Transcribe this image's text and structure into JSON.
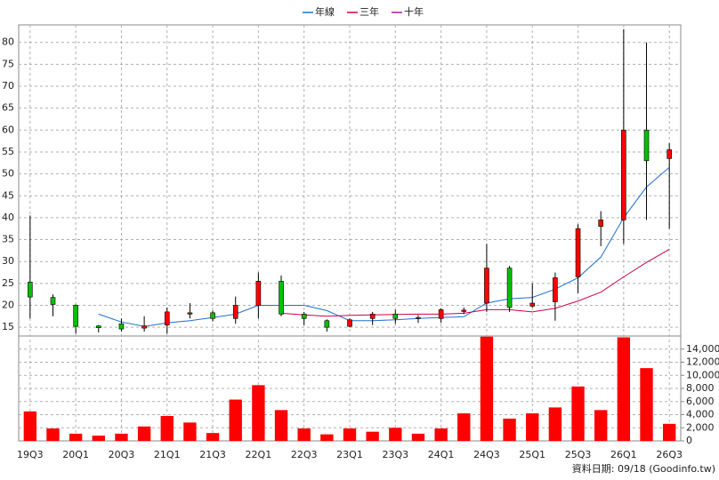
{
  "chart_data": {
    "type": "candlestick",
    "categories": [
      "19Q3",
      null,
      "20Q1",
      null,
      "20Q3",
      null,
      "21Q1",
      null,
      "21Q3",
      null,
      "22Q1",
      null,
      "22Q3",
      null,
      "23Q1",
      null,
      "23Q3",
      null,
      "24Q1",
      null,
      "24Q3",
      null,
      "25Q1",
      null,
      "25Q3",
      null,
      "26Q1",
      null,
      "26Q3"
    ],
    "open": [
      25.3,
      21.8,
      20,
      15.3,
      15.8,
      14.8,
      15.5,
      18,
      18.3,
      17,
      20,
      25.5,
      18,
      16.5,
      15.2,
      17,
      18,
      17,
      17,
      18.6,
      20.5,
      28.5,
      19.8,
      20.8,
      26.5,
      38,
      39.5,
      60,
      53.5
    ],
    "close": [
      21.9,
      20.2,
      15.2,
      14.9,
      14.6,
      15.3,
      18.5,
      18.3,
      17,
      20,
      25.5,
      18,
      17,
      15,
      16.7,
      18,
      17,
      17.2,
      19,
      18.9,
      28.5,
      19.5,
      20.5,
      26.3,
      37.5,
      39.5,
      60,
      53,
      55.5
    ],
    "high": [
      40.5,
      22.5,
      20.2,
      15.5,
      17,
      17.5,
      19.5,
      20.5,
      18.8,
      22,
      27.5,
      26.8,
      18.5,
      16.8,
      17,
      18.5,
      19,
      17.8,
      19.3,
      19.5,
      34,
      29,
      25,
      27.5,
      38.5,
      41.5,
      83,
      80,
      57
    ],
    "low": [
      17,
      17.5,
      13.5,
      13.8,
      14,
      14,
      13.5,
      17,
      16.3,
      15.8,
      17,
      17.5,
      15.5,
      14,
      15,
      15.5,
      15.8,
      16,
      16,
      18,
      18.5,
      18.5,
      19.5,
      16.5,
      22.8,
      33.5,
      34,
      39.5,
      37.5
    ],
    "up_color": "#ff0000",
    "down_color": "#00c000",
    "ylim": [
      13,
      84
    ],
    "yticks": [
      15,
      20,
      25,
      30,
      35,
      40,
      45,
      50,
      55,
      60,
      65,
      70,
      75,
      80
    ],
    "grid": true,
    "legend": "top",
    "series": [
      {
        "name": "年線",
        "color": "#1f6fd0",
        "values": [
          null,
          null,
          null,
          18,
          16.2,
          15.2,
          16,
          16.5,
          17.2,
          18,
          20,
          20,
          20,
          18.8,
          16.5,
          16.5,
          16.7,
          17,
          17.2,
          17.4,
          20.5,
          21.5,
          21.8,
          23.7,
          26.3,
          31,
          40,
          47,
          51.5
        ]
      },
      {
        "name": "三年",
        "color": "#d0004a",
        "values": [
          null,
          null,
          null,
          null,
          null,
          null,
          null,
          null,
          null,
          null,
          null,
          18.2,
          17.8,
          17.5,
          17.7,
          17.8,
          17.9,
          18,
          18,
          18.2,
          19,
          19,
          18.5,
          19.3,
          21,
          23,
          26.5,
          29.8,
          32.8
        ]
      },
      {
        "name": "十年",
        "color": "#a0209a",
        "values": [
          null,
          null,
          null,
          null,
          null,
          null,
          null,
          null,
          null,
          null,
          null,
          null,
          null,
          null,
          null,
          null,
          null,
          null,
          null,
          null,
          null,
          null,
          null,
          null,
          null,
          null,
          null,
          null,
          null
        ]
      }
    ],
    "volume": {
      "color": "#ff0000",
      "values": [
        4500,
        1900,
        1100,
        800,
        1100,
        2200,
        3800,
        2800,
        1200,
        6300,
        8500,
        4700,
        1900,
        1000,
        1900,
        1400,
        2000,
        1100,
        1900,
        4200,
        15900,
        3400,
        4200,
        5100,
        8300,
        4700,
        15800,
        11100,
        2600
      ],
      "ylim": [
        0,
        16000
      ],
      "yticks": [
        0,
        {
          "value": 2000,
          "label": "2,000"
        },
        {
          "value": 4000,
          "label": "4,000"
        },
        {
          "value": 6000,
          "label": "6,000"
        },
        {
          "value": 8000,
          "label": "8,000"
        },
        {
          "value": 10000,
          "label": "10,000"
        },
        {
          "value": 12000,
          "label": "12,000"
        },
        {
          "value": 14000,
          "label": "14,000"
        }
      ]
    },
    "source": "資料日期: 09/18 (Goodinfo.tw)"
  }
}
